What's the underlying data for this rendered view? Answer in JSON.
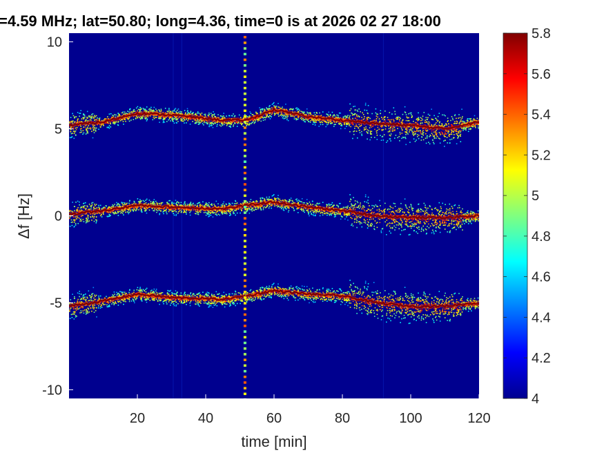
{
  "chart_data": {
    "type": "heatmap",
    "title": "=4.59 MHz;  lat=50.80; long=4.36, time=0 is at 2026 02 27 18:00",
    "xlabel": "time [min]",
    "ylabel": "Δf [Hz]",
    "xlim": [
      0,
      120
    ],
    "ylim": [
      -10.5,
      10.5
    ],
    "xticks": [
      "20",
      "40",
      "60",
      "80",
      "100",
      "120"
    ],
    "yticks": [
      "10",
      "5",
      "0",
      "-5",
      "-10"
    ],
    "colorbar": {
      "range": [
        4,
        5.8
      ],
      "ticks": [
        "5.8",
        "5.6",
        "5.4",
        "5.2",
        "5",
        "4.8",
        "4.6",
        "4.4",
        "4.2",
        "4"
      ],
      "colormap": "jet"
    },
    "background_value": 4,
    "traces": [
      {
        "name": "",
        "x": [
          0,
          10,
          20,
          30,
          45,
          52,
          60,
          70,
          80,
          90,
          100,
          110,
          120
        ],
        "y": [
          5.2,
          5.4,
          5.9,
          5.8,
          5.5,
          5.5,
          6.1,
          5.7,
          5.5,
          5.3,
          5.2,
          5.0,
          5.4
        ]
      },
      {
        "name": "",
        "x": [
          0,
          10,
          20,
          30,
          45,
          52,
          60,
          70,
          80,
          90,
          100,
          110,
          120
        ],
        "y": [
          0.1,
          0.3,
          0.6,
          0.5,
          0.4,
          0.6,
          0.8,
          0.5,
          0.3,
          0.0,
          -0.1,
          -0.1,
          0.0
        ]
      },
      {
        "name": "",
        "x": [
          0,
          10,
          20,
          30,
          45,
          52,
          60,
          70,
          80,
          90,
          100,
          110,
          120
        ],
        "y": [
          -5.2,
          -4.9,
          -4.5,
          -4.7,
          -4.8,
          -4.6,
          -4.3,
          -4.5,
          -4.6,
          -5.0,
          -5.2,
          -5.2,
          -5.0
        ]
      }
    ],
    "vertical_streak_x": 51.5
  },
  "colors": {
    "plot_background": "#00008f",
    "trace_core": "#800000",
    "axis_text": "#262626"
  }
}
